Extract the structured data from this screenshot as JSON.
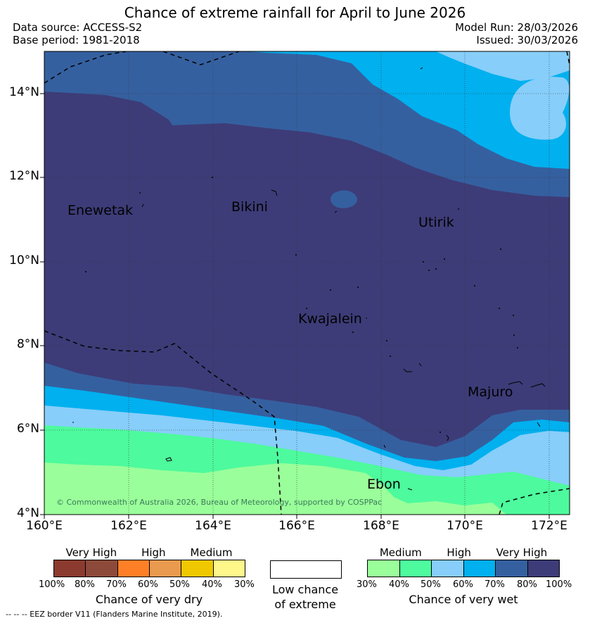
{
  "title": "Chance of extreme rainfall for April to June 2026",
  "data_source": "Data source: ACCESS-S2",
  "base_period": "Base period: 1981-2018",
  "model_run": "Model Run: 28/03/2026",
  "issued": "Issued: 30/03/2026",
  "map": {
    "lat_labels": [
      "14°N",
      "12°N",
      "10°N",
      "8°N",
      "6°N",
      "4°N"
    ],
    "lon_labels": [
      "160°E",
      "162°E",
      "164°E",
      "166°E",
      "168°E",
      "170°E",
      "172°E"
    ],
    "places": [
      "Enewetak",
      "Bikini",
      "Utirik",
      "Kwajalein",
      "Majuro",
      "Ebon"
    ],
    "copyright": "© Commonwealth of Australia 2026, Bureau of Meteorology, supported by COSPPac"
  },
  "legend": {
    "dry": {
      "headers": [
        "Very High",
        "High",
        "Medium"
      ],
      "colors": [
        "#8b3a2f",
        "#8d4a3a",
        "#ff7f27",
        "#e99a4f",
        "#f0c800",
        "#fff78a"
      ],
      "ticks": [
        "100%",
        "80%",
        "70%",
        "60%",
        "50%",
        "40%",
        "30%"
      ],
      "title": "Chance of very dry"
    },
    "low": {
      "line1": "Low chance",
      "line2": "of extreme"
    },
    "wet": {
      "headers": [
        "Medium",
        "High",
        "Very High"
      ],
      "colors": [
        "#9aff9a",
        "#4dfa9d",
        "#87cefa",
        "#00b0ef",
        "#3560a0",
        "#3d3c78"
      ],
      "ticks": [
        "30%",
        "40%",
        "50%",
        "60%",
        "70%",
        "80%",
        "100%"
      ],
      "title": "Chance of very wet"
    }
  },
  "footnote": "--  --  -- EEZ border V11 (Flanders Marine Institute, 2019).",
  "colors": {
    "very_high_wet": "#3d3c78",
    "high_wet_80": "#3560a0",
    "high_wet_70": "#00b0ef",
    "medium_wet_50": "#87cefa",
    "medium_wet_40": "#4dfa9d",
    "medium_wet_30": "#9aff9a"
  }
}
